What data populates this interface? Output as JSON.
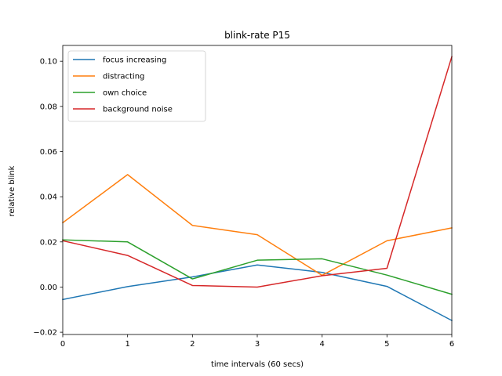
{
  "chart_data": {
    "type": "line",
    "title": "blink-rate P15",
    "xlabel": "time intervals (60 secs)",
    "ylabel": "relative blink",
    "x": [
      0,
      1,
      2,
      3,
      4,
      5,
      6
    ],
    "xlim": [
      0,
      6
    ],
    "ylim": [
      -0.021,
      0.107
    ],
    "xticks": [
      "0",
      "1",
      "2",
      "3",
      "4",
      "5",
      "6"
    ],
    "yticks": [
      -0.02,
      0.0,
      0.02,
      0.04,
      0.06,
      0.08,
      0.1
    ],
    "ytick_labels": [
      "−0.02",
      "0.00",
      "0.02",
      "0.04",
      "0.06",
      "0.08",
      "0.10"
    ],
    "grid": false,
    "legend_position": "top-left",
    "series": [
      {
        "name": "focus increasing",
        "color": "#1f77b4",
        "values": [
          -0.0055,
          0.0002,
          0.0045,
          0.0098,
          0.0065,
          0.0003,
          -0.0148
        ]
      },
      {
        "name": "distracting",
        "color": "#ff7f0e",
        "values": [
          0.0285,
          0.0498,
          0.0273,
          0.0232,
          0.0052,
          0.0205,
          0.0262
        ]
      },
      {
        "name": "own choice",
        "color": "#2ca02c",
        "values": [
          0.0209,
          0.02,
          0.0036,
          0.0119,
          0.0125,
          0.0053,
          -0.0032
        ]
      },
      {
        "name": "background noise",
        "color": "#d62728",
        "values": [
          0.0205,
          0.014,
          0.0007,
          0.0,
          0.005,
          0.0083,
          0.102
        ]
      }
    ]
  }
}
